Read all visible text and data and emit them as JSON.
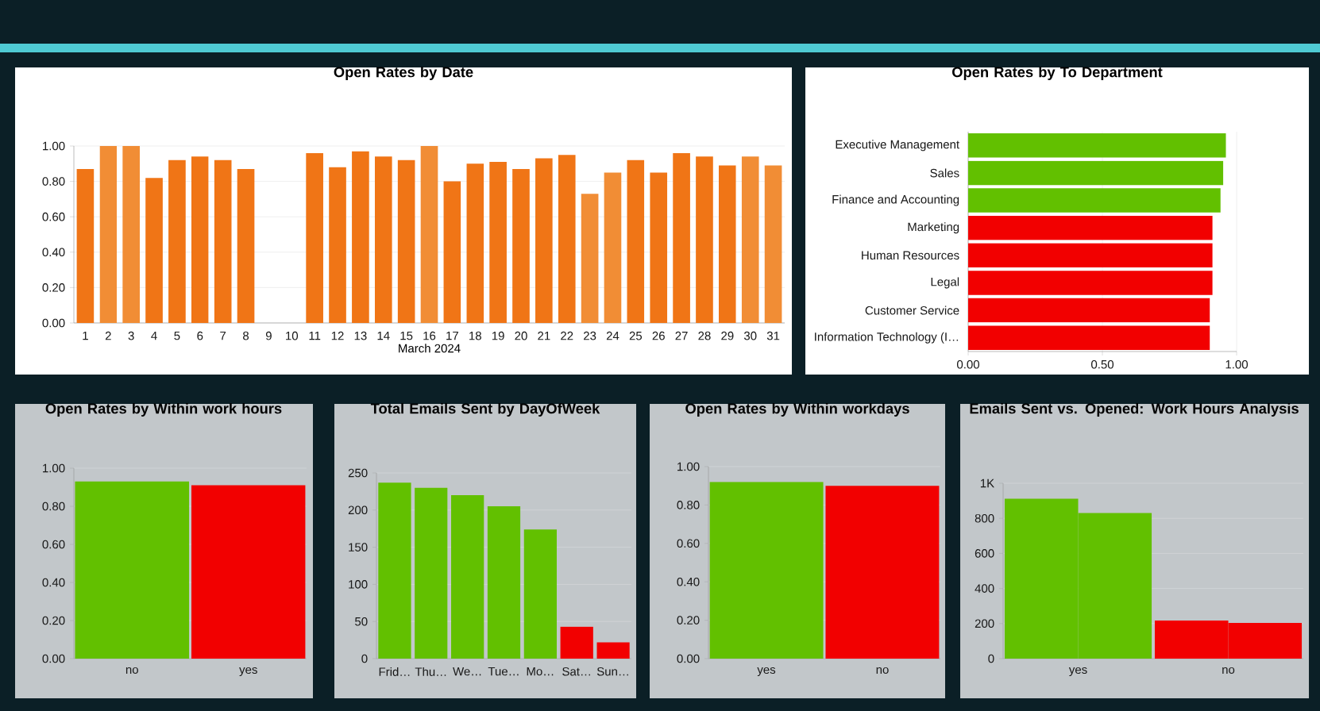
{
  "chart_data": [
    {
      "type": "bar",
      "title": "Open Rates by Date",
      "xlabel": "March 2024",
      "categories": [
        "1",
        "2",
        "3",
        "4",
        "5",
        "6",
        "7",
        "8",
        "9",
        "10",
        "11",
        "12",
        "13",
        "14",
        "15",
        "16",
        "17",
        "18",
        "19",
        "20",
        "21",
        "22",
        "23",
        "24",
        "25",
        "26",
        "27",
        "28",
        "29",
        "30",
        "31"
      ],
      "values": [
        0.87,
        1.0,
        1.0,
        0.82,
        0.92,
        0.94,
        0.92,
        0.87,
        null,
        null,
        0.96,
        0.88,
        0.97,
        0.94,
        0.92,
        1.0,
        0.8,
        0.9,
        0.91,
        0.87,
        0.93,
        0.95,
        0.73,
        0.85,
        0.92,
        0.85,
        0.96,
        0.94,
        0.89,
        0.94,
        0.89
      ],
      "colors": [
        "#f07516",
        "#f18d35",
        "#f18d35",
        "#f07516",
        "#f07516",
        "#f07516",
        "#f07516",
        "#f07516",
        "#f07516",
        "#f07516",
        "#f07516",
        "#f07516",
        "#f07516",
        "#f07516",
        "#f07516",
        "#f18d35",
        "#f07516",
        "#f07516",
        "#f07516",
        "#f07516",
        "#f07516",
        "#f07516",
        "#f18d35",
        "#f18d35",
        "#f07516",
        "#f07516",
        "#f07516",
        "#f07516",
        "#f07516",
        "#f18d35",
        "#f18d35"
      ],
      "ylim": [
        0,
        1.0
      ],
      "yticks": [
        {
          "value": 0,
          "label": "0.00"
        },
        {
          "value": 0.2,
          "label": "0.20"
        },
        {
          "value": 0.4,
          "label": "0.40"
        },
        {
          "value": 0.6,
          "label": "0.60"
        },
        {
          "value": 0.8,
          "label": "0.80"
        },
        {
          "value": 1.0,
          "label": "1.00"
        }
      ],
      "grid": "y"
    },
    {
      "type": "bar",
      "orientation": "horizontal",
      "title": "Open Rates by To Department",
      "categories": [
        "Executive Management",
        "Sales",
        "Finance and Accounting",
        "Marketing",
        "Human Resources",
        "Legal",
        "Customer Service",
        "Information Technology (I…"
      ],
      "values": [
        0.96,
        0.95,
        0.94,
        0.91,
        0.91,
        0.91,
        0.9,
        0.9
      ],
      "colors": [
        "#62c000",
        "#62c000",
        "#62c000",
        "#f20000",
        "#f20000",
        "#f20000",
        "#f20000",
        "#f20000"
      ],
      "xlim": [
        0,
        1.0
      ],
      "xticks": [
        {
          "value": 0,
          "label": "0.00"
        },
        {
          "value": 0.5,
          "label": "0.50"
        },
        {
          "value": 1.0,
          "label": "1.00"
        }
      ],
      "grid": "x"
    },
    {
      "type": "bar",
      "title": "Open Rates by Within work hours",
      "categories": [
        "no",
        "yes"
      ],
      "values": [
        0.93,
        0.91
      ],
      "colors": [
        "#62c000",
        "#f20000"
      ],
      "ylim": [
        0,
        1.0
      ],
      "yticks": [
        {
          "value": 0,
          "label": "0.00"
        },
        {
          "value": 0.2,
          "label": "0.20"
        },
        {
          "value": 0.4,
          "label": "0.40"
        },
        {
          "value": 0.6,
          "label": "0.60"
        },
        {
          "value": 0.8,
          "label": "0.80"
        },
        {
          "value": 1.0,
          "label": "1.00"
        }
      ],
      "grid": "y"
    },
    {
      "type": "bar",
      "title": "Total Emails Sent by DayOfWeek",
      "categories": [
        "Frid…",
        "Thu…",
        "We…",
        "Tue…",
        "Mo…",
        "Sat…",
        "Sun…"
      ],
      "values": [
        237,
        230,
        220,
        205,
        174,
        43,
        22
      ],
      "colors": [
        "#62c000",
        "#62c000",
        "#62c000",
        "#62c000",
        "#62c000",
        "#f20000",
        "#f20000"
      ],
      "ylim": [
        0,
        250
      ],
      "yticks": [
        0,
        50,
        100,
        150,
        200,
        250
      ],
      "grid": "y"
    },
    {
      "type": "bar",
      "title": "Open Rates by Within workdays",
      "categories": [
        "yes",
        "no"
      ],
      "values": [
        0.92,
        0.9
      ],
      "colors": [
        "#62c000",
        "#f20000"
      ],
      "ylim": [
        0,
        1.0
      ],
      "yticks": [
        {
          "value": 0,
          "label": "0.00"
        },
        {
          "value": 0.2,
          "label": "0.20"
        },
        {
          "value": 0.4,
          "label": "0.40"
        },
        {
          "value": 0.6,
          "label": "0.60"
        },
        {
          "value": 0.8,
          "label": "0.80"
        },
        {
          "value": 1.0,
          "label": "1.00"
        }
      ],
      "grid": "y"
    },
    {
      "type": "bar",
      "title": "Emails Sent vs. Opened: Work Hours Analysis",
      "categories": [
        "yes",
        "no"
      ],
      "series": [
        {
          "colors": [
            "#62c000",
            "#f20000"
          ],
          "values": [
            912,
            217
          ]
        },
        {
          "colors": [
            "#62c000",
            "#f20000"
          ],
          "values": [
            830,
            204
          ]
        }
      ],
      "ylim": [
        0,
        1000
      ],
      "yticks": [
        0,
        200,
        400,
        600,
        800,
        {
          "value": 1000,
          "label": "1K"
        }
      ],
      "grid": "y"
    }
  ]
}
